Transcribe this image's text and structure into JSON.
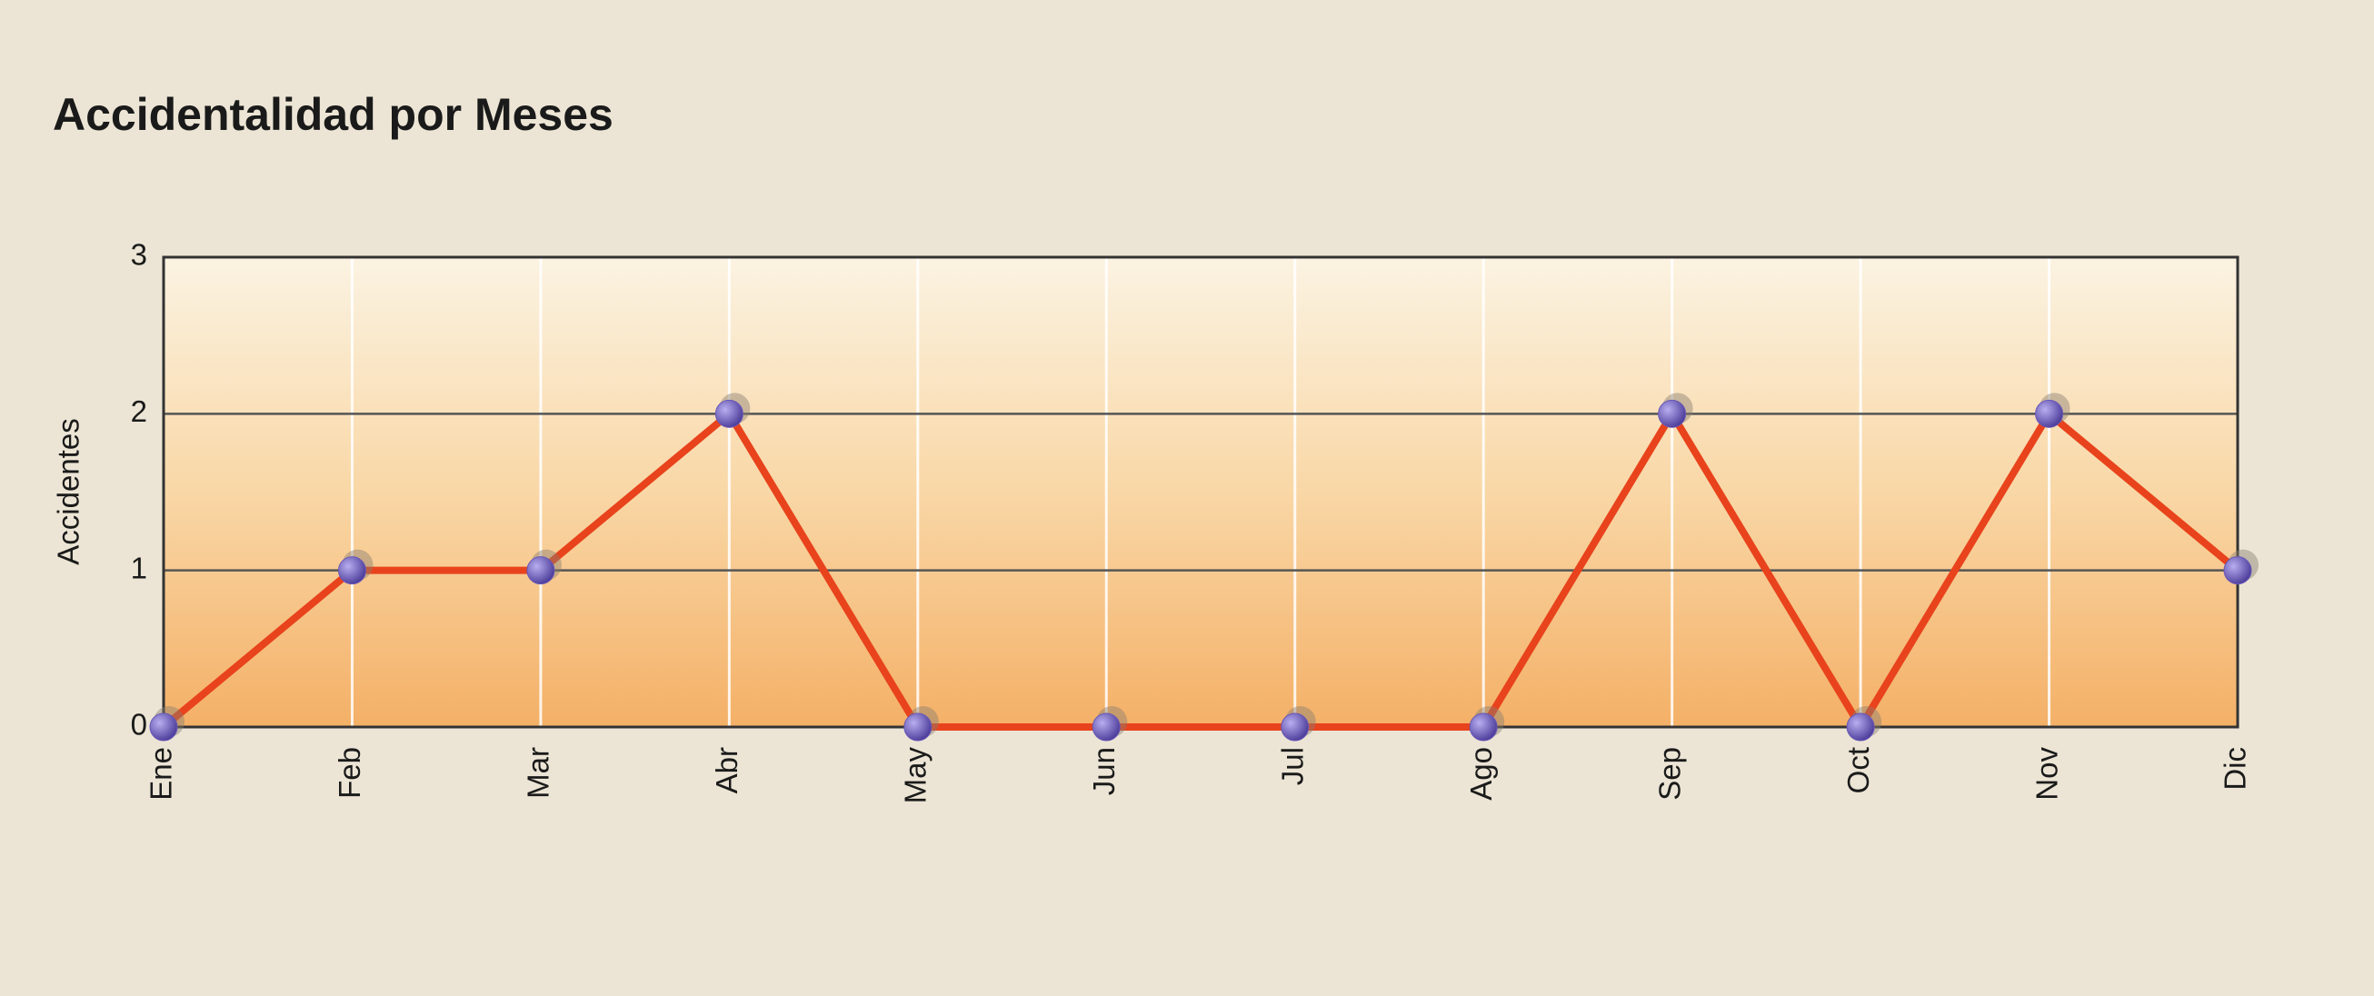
{
  "chart_data": {
    "type": "line",
    "title": "Accidentalidad por Meses",
    "y_label": "Accidentes",
    "categories": [
      "Ene",
      "Feb",
      "Mar",
      "Abr",
      "May",
      "Jun",
      "Jul",
      "Ago",
      "Sep",
      "Oct",
      "Nov",
      "Dic"
    ],
    "values": [
      0,
      1,
      1,
      2,
      0,
      0,
      0,
      0,
      2,
      0,
      2,
      1
    ],
    "color": "#e8431c",
    "marker_color": "#6a58b8",
    "ylim": [
      0,
      3
    ],
    "yticks": [
      0,
      1,
      2,
      3
    ],
    "grid": true
  }
}
